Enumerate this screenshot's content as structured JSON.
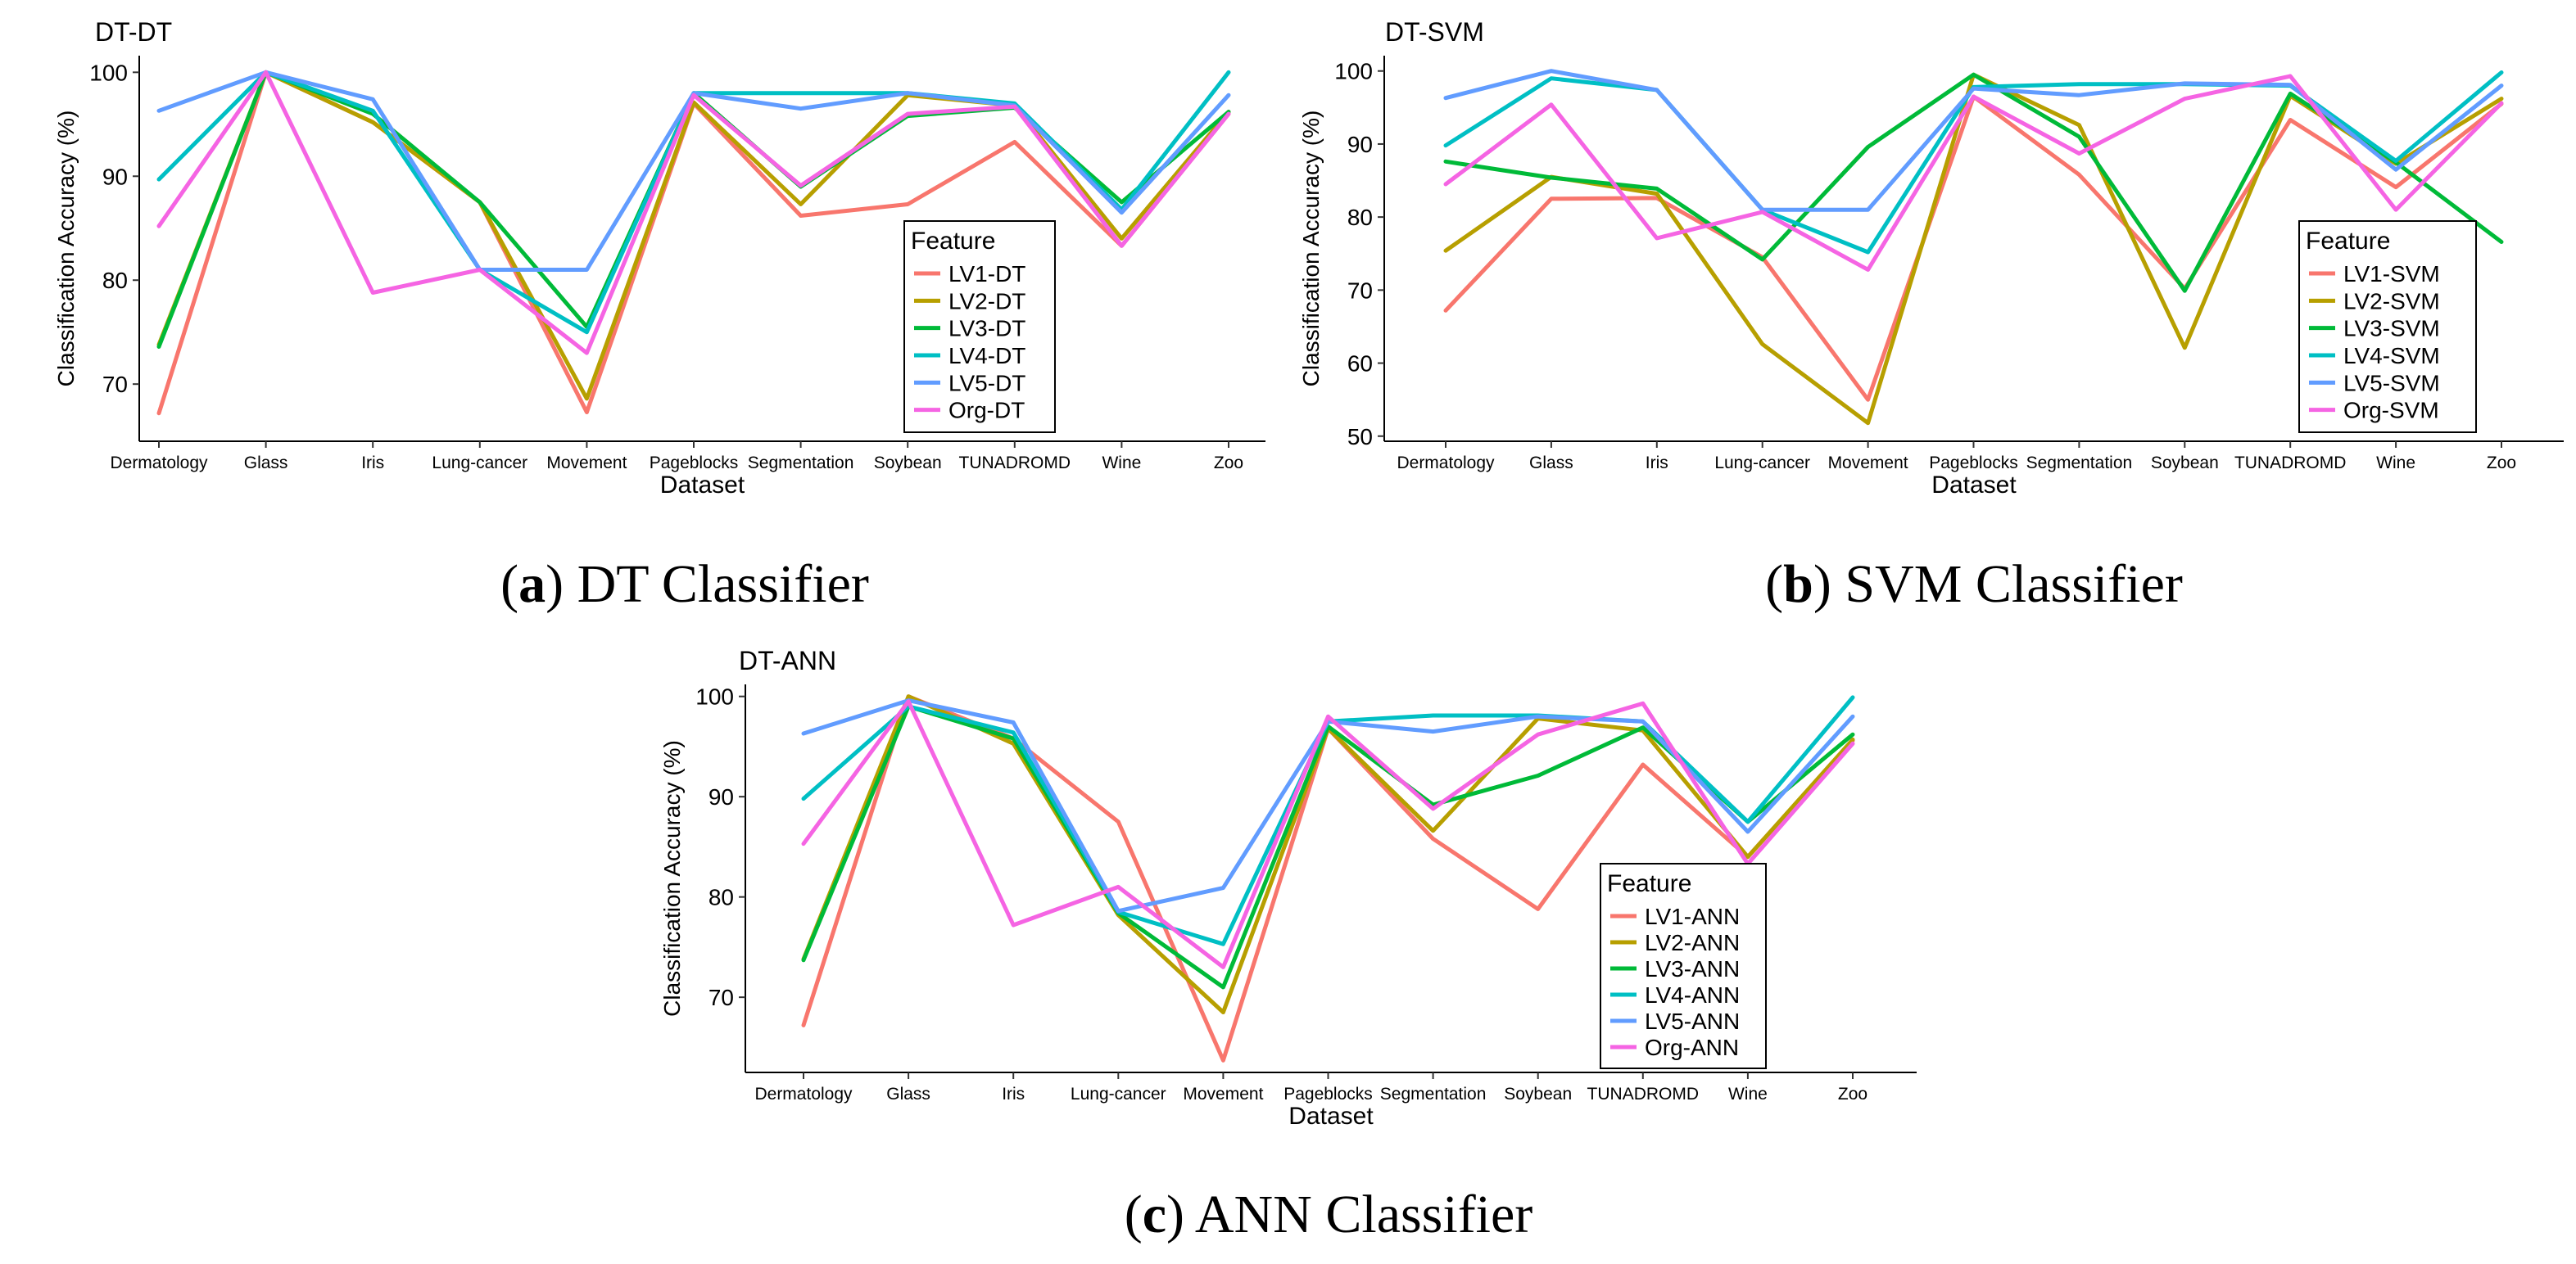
{
  "chart_data": [
    {
      "id": "dt",
      "type": "line",
      "title": "DT-DT",
      "xlabel": "Dataset",
      "ylabel": "Classification Accuracy (%)",
      "ylim": [
        64.5,
        101.6
      ],
      "yticks": [
        70,
        80,
        90,
        100
      ],
      "categories": [
        "Dermatology",
        "Glass",
        "Iris",
        "Lung-cancer",
        "Movement",
        "Pageblocks",
        "Segmentation",
        "Soybean",
        "TUNADROMD",
        "Wine",
        "Zoo"
      ],
      "legend_title": "Feature",
      "legend_position": "bottom-right",
      "grid": false,
      "caption_letter": "a",
      "caption_text": " DT Classifier",
      "series": [
        {
          "name": "LV1-DT",
          "color": "#F8766D",
          "values": [
            67.2,
            100,
            95.2,
            87.5,
            67.3,
            97.0,
            86.2,
            87.3,
            93.3,
            83.3,
            96.0
          ]
        },
        {
          "name": "LV2-DT",
          "color": "#B79F00",
          "values": [
            73.8,
            100,
            95.2,
            87.5,
            68.6,
            97.1,
            87.3,
            97.8,
            96.8,
            84.0,
            96.2
          ]
        },
        {
          "name": "LV3-DT",
          "color": "#00BA38",
          "values": [
            73.6,
            100,
            96.0,
            87.5,
            75.5,
            98.0,
            89.0,
            95.8,
            96.6,
            87.5,
            96.2
          ]
        },
        {
          "name": "LV4-DT",
          "color": "#00BFC4",
          "values": [
            89.7,
            100,
            96.3,
            81.0,
            75.0,
            98.0,
            98.0,
            98.0,
            97.0,
            86.8,
            100.0
          ]
        },
        {
          "name": "LV5-DT",
          "color": "#619CFF",
          "values": [
            96.3,
            100,
            97.4,
            81.0,
            81.0,
            98.0,
            96.5,
            98.0,
            96.8,
            86.5,
            97.8
          ]
        },
        {
          "name": "Org-DT",
          "color": "#F564E3",
          "values": [
            85.2,
            100,
            78.8,
            81.0,
            73.0,
            97.8,
            89.1,
            96.0,
            96.7,
            83.3,
            96.0
          ]
        }
      ]
    },
    {
      "id": "svm",
      "type": "line",
      "title": "DT-SVM",
      "xlabel": "Dataset",
      "ylabel": "Classification Accuracy (%)",
      "ylim": [
        49.3,
        102.1
      ],
      "yticks": [
        50,
        60,
        70,
        80,
        90,
        100
      ],
      "categories": [
        "Dermatology",
        "Glass",
        "Iris",
        "Lung-cancer",
        "Movement",
        "Pageblocks",
        "Segmentation",
        "Soybean",
        "TUNADROMD",
        "Wine",
        "Zoo"
      ],
      "legend_title": "Feature",
      "legend_position": "bottom-right",
      "grid": false,
      "caption_letter": "b",
      "caption_text": " SVM Classifier",
      "series": [
        {
          "name": "LV1-SVM",
          "color": "#F8766D",
          "values": [
            67.2,
            82.5,
            82.6,
            74.5,
            55.0,
            96.5,
            85.8,
            70.2,
            93.3,
            84.1,
            95.5
          ]
        },
        {
          "name": "LV2-SVM",
          "color": "#B79F00",
          "values": [
            75.4,
            85.5,
            83.2,
            62.6,
            51.8,
            99.5,
            92.6,
            62.1,
            96.6,
            87.3,
            96.2
          ]
        },
        {
          "name": "LV3-SVM",
          "color": "#00BA38",
          "values": [
            87.6,
            85.4,
            83.9,
            74.2,
            89.6,
            99.5,
            91.0,
            69.9,
            96.9,
            87.5,
            76.6
          ]
        },
        {
          "name": "LV4-SVM",
          "color": "#00BFC4",
          "values": [
            89.8,
            99.0,
            97.4,
            81.0,
            75.2,
            97.8,
            98.2,
            98.2,
            98.0,
            87.7,
            99.8
          ]
        },
        {
          "name": "LV5-SVM",
          "color": "#619CFF",
          "values": [
            96.3,
            100.0,
            97.4,
            81.0,
            81.0,
            97.6,
            96.7,
            98.3,
            98.1,
            86.5,
            98.0
          ]
        },
        {
          "name": "Org-SVM",
          "color": "#F564E3",
          "values": [
            84.5,
            95.4,
            77.1,
            80.7,
            72.8,
            96.5,
            88.7,
            96.2,
            99.3,
            81.0,
            95.6
          ]
        }
      ]
    },
    {
      "id": "ann",
      "type": "line",
      "title": "DT-ANN",
      "xlabel": "Dataset",
      "ylabel": "Classification Accuracy (%)",
      "ylim": [
        62.5,
        101.2
      ],
      "yticks": [
        70,
        80,
        90,
        100
      ],
      "categories": [
        "Dermatology",
        "Glass",
        "Iris",
        "Lung-cancer",
        "Movement",
        "Pageblocks",
        "Segmentation",
        "Soybean",
        "TUNADROMD",
        "Wine",
        "Zoo"
      ],
      "legend_title": "Feature",
      "legend_position": "bottom-right",
      "grid": false,
      "caption_letter": "c",
      "caption_text": " ANN Classifier",
      "series": [
        {
          "name": "LV1-ANN",
          "color": "#F8766D",
          "values": [
            67.2,
            100.0,
            95.8,
            87.5,
            63.7,
            96.8,
            85.8,
            78.8,
            93.2,
            84.0,
            95.6
          ]
        },
        {
          "name": "LV2-ANN",
          "color": "#B79F00",
          "values": [
            73.8,
            100.0,
            95.3,
            78.2,
            68.5,
            96.8,
            86.6,
            97.8,
            96.6,
            84.0,
            95.7
          ]
        },
        {
          "name": "LV3-ANN",
          "color": "#00BA38",
          "values": [
            73.7,
            99.0,
            95.8,
            78.4,
            71.0,
            97.0,
            89.2,
            92.1,
            96.9,
            87.5,
            96.2
          ]
        },
        {
          "name": "LV4-ANN",
          "color": "#00BFC4",
          "values": [
            89.8,
            99.0,
            96.4,
            78.5,
            75.3,
            97.5,
            98.1,
            98.1,
            97.5,
            87.5,
            99.9
          ]
        },
        {
          "name": "LV5-ANN",
          "color": "#619CFF",
          "values": [
            96.3,
            99.6,
            97.4,
            78.6,
            80.9,
            97.5,
            96.5,
            98.0,
            97.5,
            86.5,
            98.0
          ]
        },
        {
          "name": "Org-ANN",
          "color": "#F564E3",
          "values": [
            85.3,
            99.5,
            77.2,
            81.0,
            73.0,
            98.0,
            88.8,
            96.2,
            99.3,
            83.3,
            95.3
          ]
        }
      ]
    }
  ]
}
